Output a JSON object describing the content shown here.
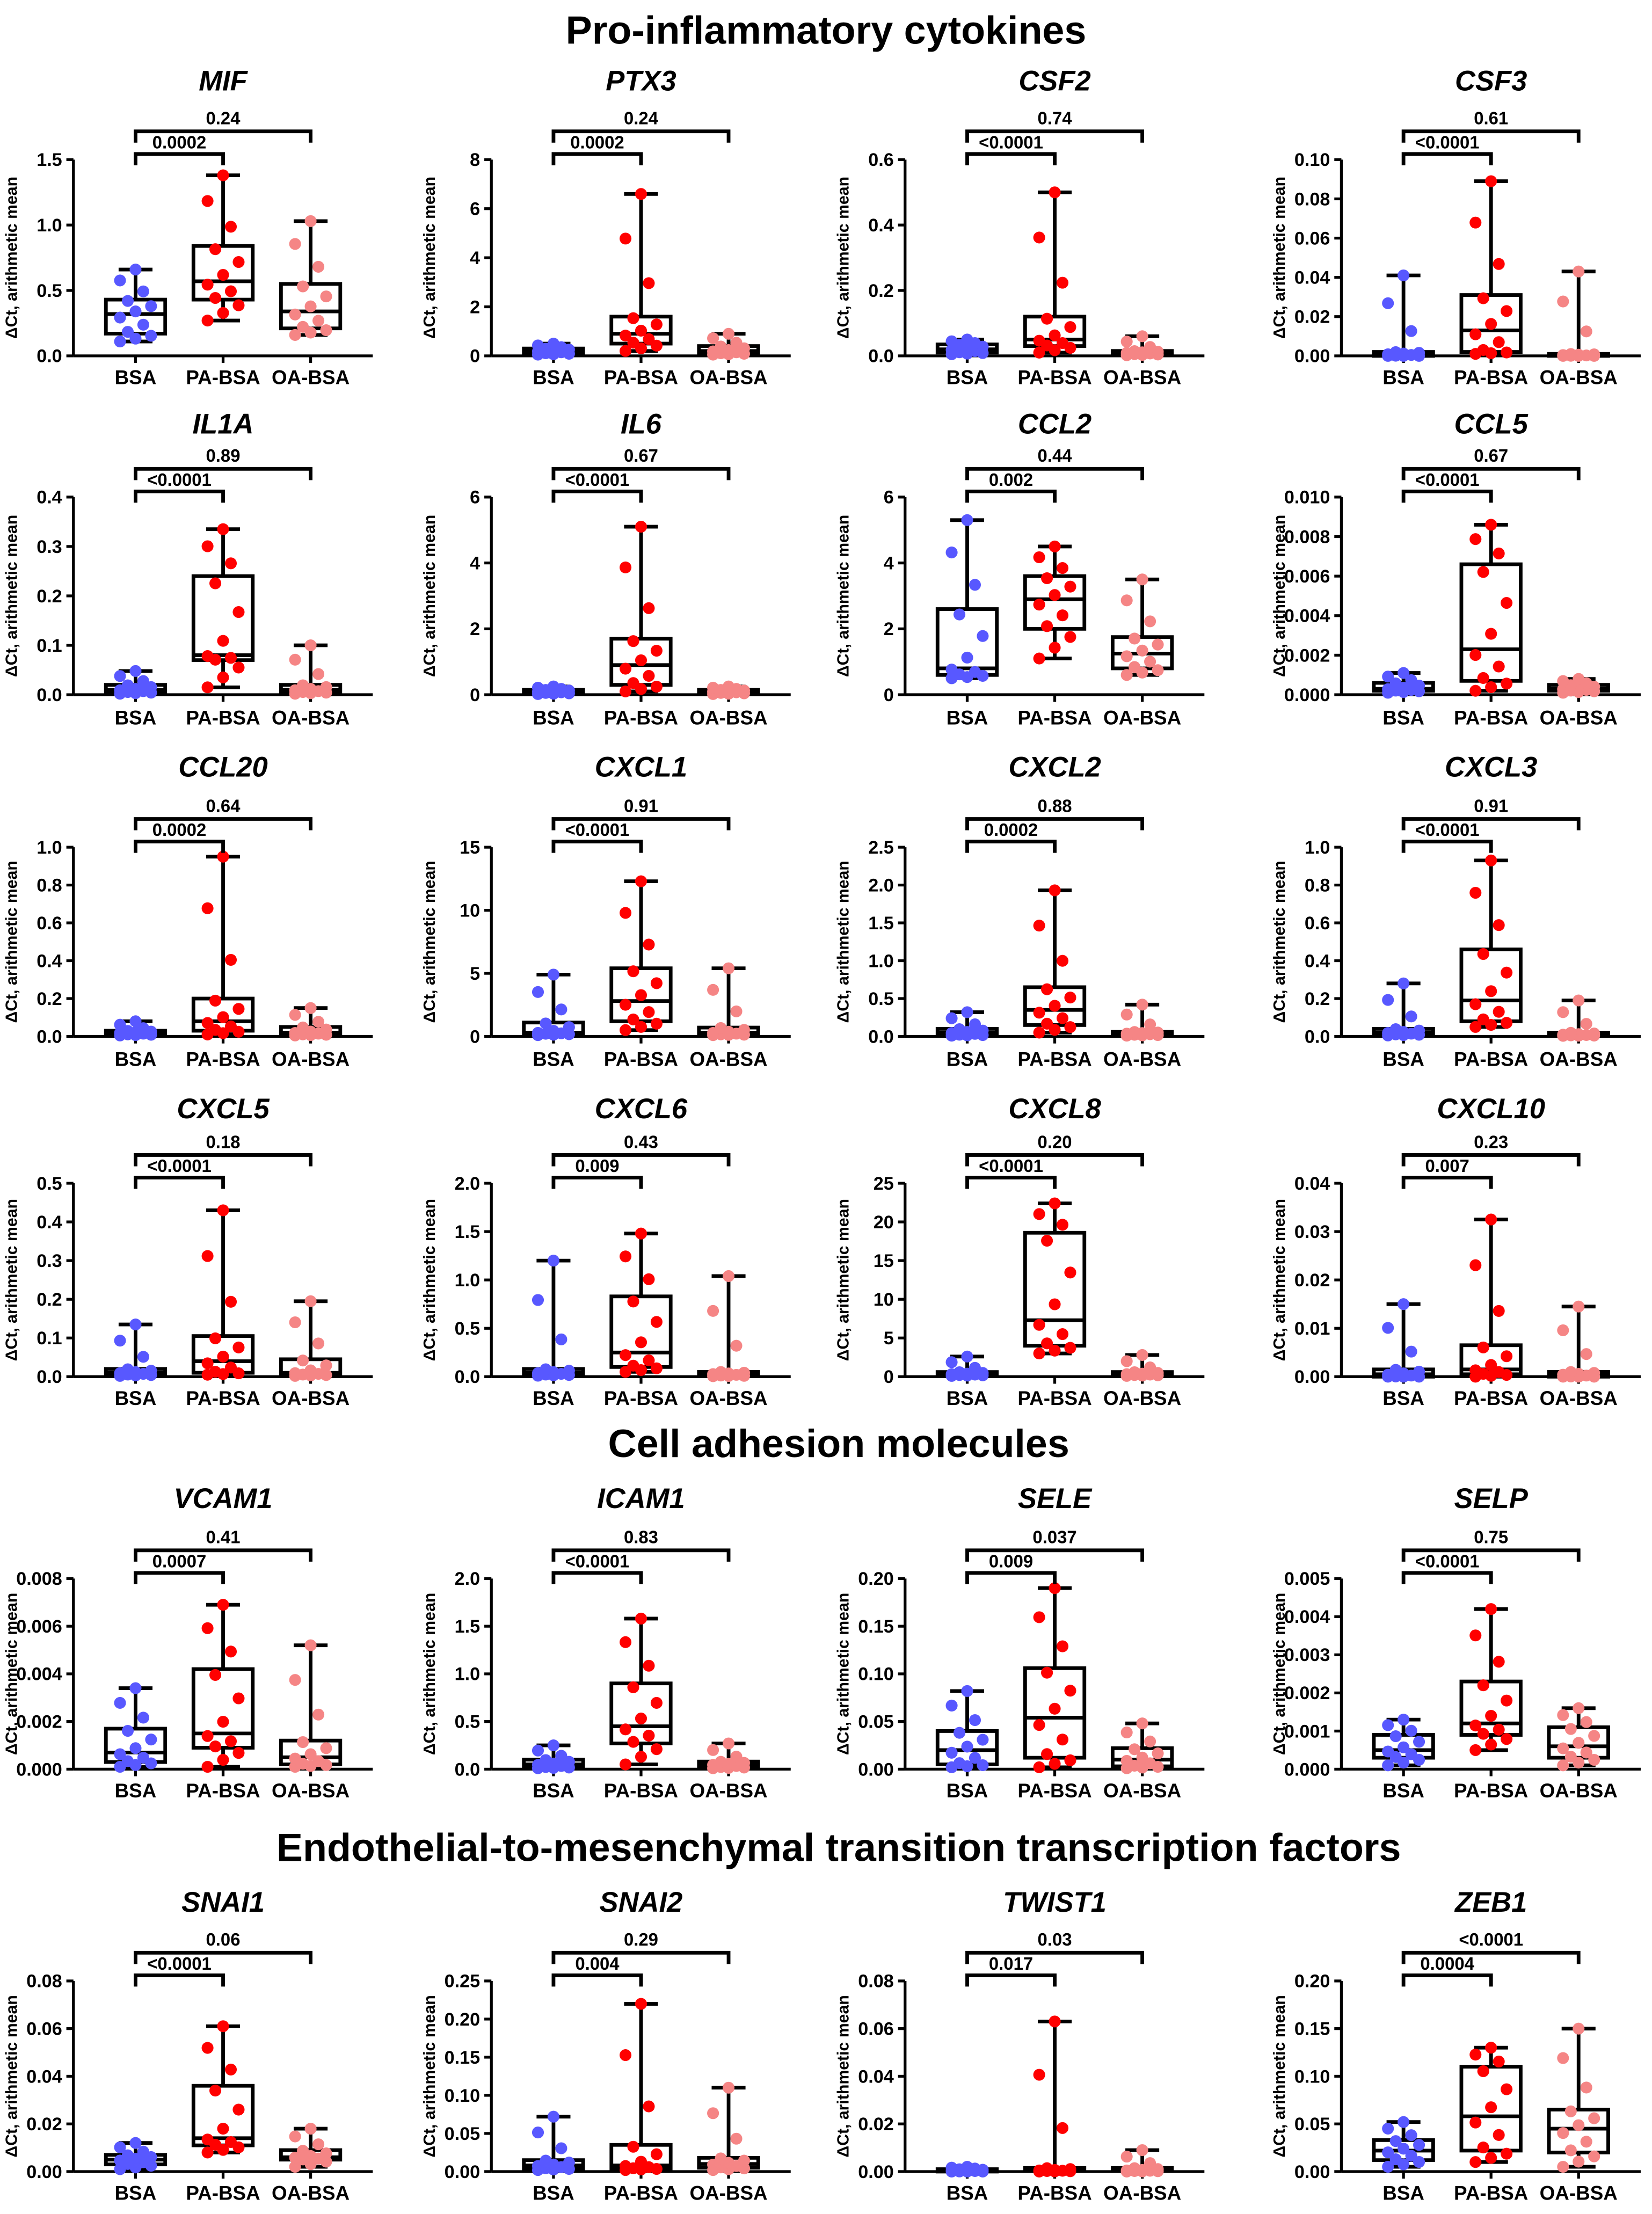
{
  "sections": [
    "Pro-inflammatory cytokines",
    "Cell adhesion molecules",
    "Endothelial-to-mesenchymal transition transcription factors"
  ],
  "colors": {
    "BSA": "#5858ff",
    "PA-BSA": "#ff0000",
    "OA-BSA": "#f58585"
  },
  "chart_data": {
    "type": "box",
    "groups": [
      "BSA",
      "PA-BSA",
      "OA-BSA"
    ],
    "ylabel": "ΔCt, arithmetic mean",
    "n_per_group": 12,
    "stats_order": [
      "min",
      "q1",
      "median",
      "q3",
      "max"
    ],
    "panels": [
      {
        "gene": "MIF",
        "section": 0,
        "yticks": [
          "0.0",
          "0.5",
          "1.0",
          "1.5"
        ],
        "p": [
          "0.0002",
          "0.24"
        ],
        "boxes": [
          [
            0.11,
            0.17,
            0.32,
            0.43,
            0.66
          ],
          [
            0.27,
            0.43,
            0.57,
            0.84,
            1.38
          ],
          [
            0.16,
            0.21,
            0.34,
            0.55,
            1.03
          ]
        ]
      },
      {
        "gene": "PTX3",
        "section": 0,
        "yticks": [
          "0",
          "2",
          "4",
          "6",
          "8"
        ],
        "p": [
          "0.0002",
          "0.24"
        ],
        "boxes": [
          [
            0.05,
            0.1,
            0.2,
            0.3,
            0.5
          ],
          [
            0.2,
            0.5,
            0.9,
            1.6,
            6.6
          ],
          [
            0.05,
            0.1,
            0.2,
            0.4,
            0.9
          ]
        ]
      },
      {
        "gene": "CSF2",
        "section": 0,
        "yticks": [
          "0.0",
          "0.2",
          "0.4",
          "0.6"
        ],
        "p": [
          "<0.0001",
          "0.74"
        ],
        "boxes": [
          [
            0.005,
            0.01,
            0.02,
            0.035,
            0.05
          ],
          [
            0.01,
            0.03,
            0.05,
            0.12,
            0.5
          ],
          [
            0.002,
            0.005,
            0.01,
            0.015,
            0.06
          ]
        ]
      },
      {
        "gene": "CSF3",
        "section": 0,
        "yticks": [
          "0.00",
          "0.02",
          "0.04",
          "0.06",
          "0.08",
          "0.10"
        ],
        "p": [
          "<0.0001",
          "0.61"
        ],
        "boxes": [
          [
            0,
            0,
            0.001,
            0.002,
            0.041
          ],
          [
            0.001,
            0.002,
            0.013,
            0.031,
            0.089
          ],
          [
            0,
            0,
            0.0005,
            0.001,
            0.043
          ]
        ]
      },
      {
        "gene": "IL1A",
        "section": 0,
        "yticks": [
          "0.0",
          "0.1",
          "0.2",
          "0.3",
          "0.4"
        ],
        "p": [
          "<0.0001",
          "0.89"
        ],
        "boxes": [
          [
            0.002,
            0.005,
            0.01,
            0.02,
            0.048
          ],
          [
            0.015,
            0.07,
            0.08,
            0.24,
            0.335
          ],
          [
            0.002,
            0.005,
            0.01,
            0.02,
            0.1
          ]
        ]
      },
      {
        "gene": "IL6",
        "section": 0,
        "yticks": [
          "0",
          "2",
          "4",
          "6"
        ],
        "p": [
          "<0.0001",
          "0.67"
        ],
        "boxes": [
          [
            0.02,
            0.05,
            0.1,
            0.15,
            0.25
          ],
          [
            0.1,
            0.3,
            0.9,
            1.7,
            5.1
          ],
          [
            0.02,
            0.05,
            0.1,
            0.15,
            0.25
          ]
        ]
      },
      {
        "gene": "CCL2",
        "section": 0,
        "yticks": [
          "0",
          "2",
          "4",
          "6"
        ],
        "p": [
          "0.002",
          "0.44"
        ],
        "boxes": [
          [
            0.5,
            0.6,
            0.8,
            2.6,
            5.3
          ],
          [
            1.1,
            2.0,
            2.9,
            3.6,
            4.5
          ],
          [
            0.6,
            0.8,
            1.25,
            1.75,
            3.5
          ]
        ]
      },
      {
        "gene": "CCL5",
        "section": 0,
        "yticks": [
          "0.000",
          "0.002",
          "0.004",
          "0.006",
          "0.008",
          "0.010"
        ],
        "p": [
          "<0.0001",
          "0.67"
        ],
        "boxes": [
          [
            0.0001,
            0.0002,
            0.0003,
            0.0006,
            0.0011
          ],
          [
            0.0002,
            0.0007,
            0.0023,
            0.0066,
            0.0086
          ],
          [
            0.0001,
            0.0002,
            0.0003,
            0.0005,
            0.0008
          ]
        ]
      },
      {
        "gene": "CCL20",
        "section": 0,
        "yticks": [
          "0.0",
          "0.2",
          "0.4",
          "0.6",
          "0.8",
          "1.0"
        ],
        "p": [
          "0.0002",
          "0.64"
        ],
        "boxes": [
          [
            0.005,
            0.01,
            0.02,
            0.03,
            0.08
          ],
          [
            0.01,
            0.03,
            0.08,
            0.2,
            0.95
          ],
          [
            0.005,
            0.01,
            0.02,
            0.05,
            0.15
          ]
        ]
      },
      {
        "gene": "CXCL1",
        "section": 0,
        "yticks": [
          "0",
          "5",
          "10",
          "15"
        ],
        "p": [
          "<0.0001",
          "0.91"
        ],
        "boxes": [
          [
            0.1,
            0.2,
            0.3,
            1.1,
            4.9
          ],
          [
            0.5,
            1.2,
            2.8,
            5.4,
            12.3
          ],
          [
            0.1,
            0.15,
            0.3,
            0.7,
            5.4
          ]
        ]
      },
      {
        "gene": "CXCL2",
        "section": 0,
        "yticks": [
          "0.0",
          "0.5",
          "1.0",
          "1.5",
          "2.0",
          "2.5"
        ],
        "p": [
          "0.0002",
          "0.88"
        ],
        "boxes": [
          [
            0.01,
            0.02,
            0.05,
            0.1,
            0.32
          ],
          [
            0.05,
            0.15,
            0.35,
            0.65,
            1.93
          ],
          [
            0.01,
            0.02,
            0.04,
            0.06,
            0.42
          ]
        ]
      },
      {
        "gene": "CXCL3",
        "section": 0,
        "yticks": [
          "0.0",
          "0.2",
          "0.4",
          "0.6",
          "0.8",
          "1.0"
        ],
        "p": [
          "<0.0001",
          "0.91"
        ],
        "boxes": [
          [
            0.005,
            0.01,
            0.02,
            0.04,
            0.28
          ],
          [
            0.05,
            0.08,
            0.19,
            0.46,
            0.93
          ],
          [
            0.003,
            0.005,
            0.01,
            0.02,
            0.19
          ]
        ]
      },
      {
        "gene": "CXCL5",
        "section": 0,
        "yticks": [
          "0.0",
          "0.1",
          "0.2",
          "0.3",
          "0.4",
          "0.5"
        ],
        "p": [
          "<0.0001",
          "0.18"
        ],
        "boxes": [
          [
            0.002,
            0.005,
            0.01,
            0.02,
            0.135
          ],
          [
            0.005,
            0.01,
            0.04,
            0.105,
            0.43
          ],
          [
            0.002,
            0.005,
            0.01,
            0.045,
            0.195
          ]
        ]
      },
      {
        "gene": "CXCL6",
        "section": 0,
        "yticks": [
          "0.0",
          "0.5",
          "1.0",
          "1.5",
          "2.0"
        ],
        "p": [
          "0.009",
          "0.43"
        ],
        "boxes": [
          [
            0.01,
            0.02,
            0.04,
            0.08,
            1.2
          ],
          [
            0.05,
            0.1,
            0.25,
            0.83,
            1.48
          ],
          [
            0.005,
            0.01,
            0.03,
            0.05,
            1.04
          ]
        ]
      },
      {
        "gene": "CXCL8",
        "section": 0,
        "yticks": [
          "0",
          "5",
          "10",
          "15",
          "20",
          "25"
        ],
        "p": [
          "<0.0001",
          "0.20"
        ],
        "boxes": [
          [
            0.1,
            0.2,
            0.35,
            0.6,
            2.6
          ],
          [
            3,
            4,
            7.3,
            18.6,
            22.4
          ],
          [
            0.1,
            0.2,
            0.35,
            0.6,
            2.8
          ]
        ]
      },
      {
        "gene": "CXCL10",
        "section": 0,
        "yticks": [
          "0.00",
          "0.01",
          "0.02",
          "0.03",
          "0.04"
        ],
        "p": [
          "0.007",
          "0.23"
        ],
        "boxes": [
          [
            0,
            0,
            0.0005,
            0.0015,
            0.015
          ],
          [
            0,
            0.0005,
            0.0015,
            0.0065,
            0.0325
          ],
          [
            0,
            0,
            0.0005,
            0.001,
            0.0145
          ]
        ]
      },
      {
        "gene": "VCAM1",
        "section": 1,
        "yticks": [
          "0.000",
          "0.002",
          "0.004",
          "0.006",
          "0.008"
        ],
        "p": [
          "0.0007",
          "0.41"
        ],
        "boxes": [
          [
            0.0001,
            0.0003,
            0.0007,
            0.0017,
            0.0034
          ],
          [
            0.0001,
            0.0009,
            0.0015,
            0.0042,
            0.0069
          ],
          [
            0.0001,
            0.0002,
            0.0005,
            0.0012,
            0.0052
          ]
        ]
      },
      {
        "gene": "ICAM1",
        "section": 1,
        "yticks": [
          "0.0",
          "0.5",
          "1.0",
          "1.5",
          "2.0"
        ],
        "p": [
          "<0.0001",
          "0.83"
        ],
        "boxes": [
          [
            0.01,
            0.02,
            0.05,
            0.1,
            0.25
          ],
          [
            0.05,
            0.27,
            0.45,
            0.9,
            1.58
          ],
          [
            0.01,
            0.02,
            0.05,
            0.08,
            0.27
          ]
        ]
      },
      {
        "gene": "SELE",
        "section": 1,
        "yticks": [
          "0.00",
          "0.05",
          "0.10",
          "0.15",
          "0.20"
        ],
        "p": [
          "0.009",
          "0.037"
        ],
        "boxes": [
          [
            0.002,
            0.005,
            0.02,
            0.04,
            0.082
          ],
          [
            0.002,
            0.012,
            0.054,
            0.106,
            0.19
          ],
          [
            0.001,
            0.003,
            0.01,
            0.022,
            0.048
          ]
        ]
      },
      {
        "gene": "SELP",
        "section": 1,
        "yticks": [
          "0.000",
          "0.001",
          "0.002",
          "0.003",
          "0.004",
          "0.005"
        ],
        "p": [
          "<0.0001",
          "0.75"
        ],
        "boxes": [
          [
            0.0001,
            0.0003,
            0.0005,
            0.0009,
            0.0013
          ],
          [
            0.0005,
            0.0009,
            0.0012,
            0.0023,
            0.0042
          ],
          [
            0.0001,
            0.0003,
            0.0006,
            0.0011,
            0.0016
          ]
        ]
      },
      {
        "gene": "SNAI1",
        "section": 2,
        "yticks": [
          "0.00",
          "0.02",
          "0.04",
          "0.06",
          "0.08"
        ],
        "p": [
          "<0.0001",
          "0.06"
        ],
        "boxes": [
          [
            0.001,
            0.003,
            0.005,
            0.007,
            0.012
          ],
          [
            0.008,
            0.011,
            0.014,
            0.036,
            0.061
          ],
          [
            0.002,
            0.005,
            0.006,
            0.009,
            0.018
          ]
        ]
      },
      {
        "gene": "SNAI2",
        "section": 2,
        "yticks": [
          "0.00",
          "0.05",
          "0.10",
          "0.15",
          "0.20",
          "0.25"
        ],
        "p": [
          "0.004",
          "0.29"
        ],
        "boxes": [
          [
            0.002,
            0.004,
            0.008,
            0.015,
            0.072
          ],
          [
            0.002,
            0.004,
            0.008,
            0.035,
            0.22
          ],
          [
            0.002,
            0.005,
            0.01,
            0.018,
            0.11
          ]
        ]
      },
      {
        "gene": "TWIST1",
        "section": 2,
        "yticks": [
          "0.00",
          "0.02",
          "0.04",
          "0.06",
          "0.08"
        ],
        "p": [
          "0.017",
          "0.03"
        ],
        "boxes": [
          [
            0,
            0,
            0.0005,
            0.001,
            0.002
          ],
          [
            0,
            0.0002,
            0.0005,
            0.0015,
            0.063
          ],
          [
            0,
            0.0002,
            0.0005,
            0.0015,
            0.009
          ]
        ]
      },
      {
        "gene": "ZEB1",
        "section": 2,
        "yticks": [
          "0.00",
          "0.05",
          "0.10",
          "0.15",
          "0.20"
        ],
        "p": [
          "0.0004",
          "<0.0001"
        ],
        "boxes": [
          [
            0.005,
            0.012,
            0.022,
            0.033,
            0.052
          ],
          [
            0.01,
            0.022,
            0.058,
            0.11,
            0.13
          ],
          [
            0.005,
            0.02,
            0.045,
            0.065,
            0.15
          ]
        ]
      }
    ]
  }
}
